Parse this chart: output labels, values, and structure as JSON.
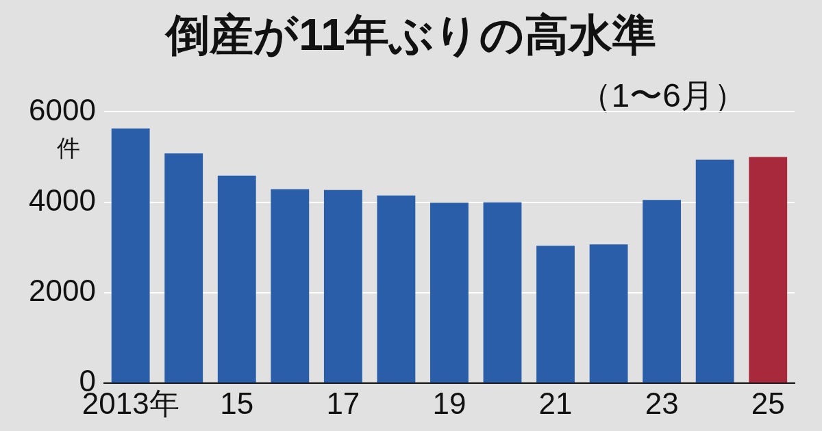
{
  "chart_data": {
    "type": "bar",
    "title": "倒産が11年ぶりの高水準",
    "subtitle": "（1〜6月）",
    "ylabel": "件",
    "categories": [
      "2013年",
      null,
      "15",
      null,
      "17",
      null,
      "19",
      null,
      "21",
      null,
      "23",
      null,
      "25"
    ],
    "values": [
      5630,
      5080,
      4590,
      4290,
      4270,
      4150,
      3990,
      4000,
      3040,
      3070,
      4050,
      4940,
      5000
    ],
    "colors": [
      "#2a5ea8",
      "#2a5ea8",
      "#2a5ea8",
      "#2a5ea8",
      "#2a5ea8",
      "#2a5ea8",
      "#2a5ea8",
      "#2a5ea8",
      "#2a5ea8",
      "#2a5ea8",
      "#2a5ea8",
      "#2a5ea8",
      "#a8283c"
    ],
    "ylim": [
      0,
      6000
    ],
    "yticks": [
      0,
      2000,
      4000,
      6000
    ],
    "grid": "y",
    "legend": false
  }
}
